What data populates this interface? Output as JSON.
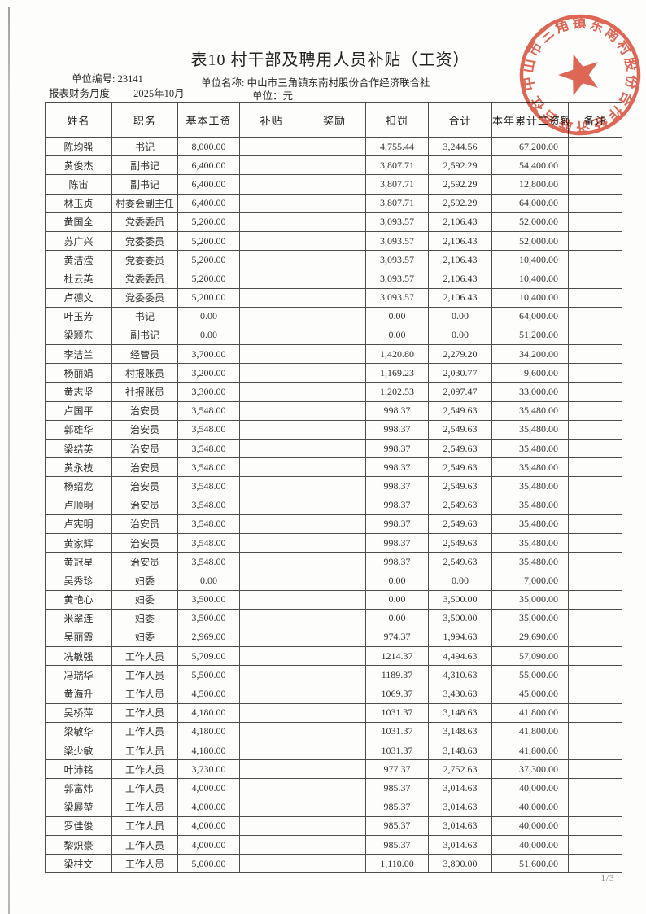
{
  "page": {
    "title": "表10 村干部及聘用人员补贴（工资）",
    "unit_code_label": "单位编号:",
    "unit_code_value": "23141",
    "unit_name_label": "单位名称:",
    "unit_name_value": "中山市三角镇东南村股份合作经济联合社",
    "period_label": "报表财务月度",
    "period_value": "2025年10月",
    "currency_note": "单位：元",
    "page_number": "1/3"
  },
  "stamp": {
    "text": "中山市三角镇东南村股份合作经济联合社",
    "color": "#d9452f"
  },
  "table": {
    "columns": [
      "姓名",
      "职务",
      "基本工资",
      "补贴",
      "奖励",
      "扣罚",
      "合计",
      "本年累计工资额",
      "备注"
    ],
    "rows": [
      [
        "陈均强",
        "书记",
        "8,000.00",
        "",
        "",
        "4,755.44",
        "3,244.56",
        "67,200.00",
        ""
      ],
      [
        "黄俊杰",
        "副书记",
        "6,400.00",
        "",
        "",
        "3,807.71",
        "2,592.29",
        "54,400.00",
        ""
      ],
      [
        "陈宙",
        "副书记",
        "6,400.00",
        "",
        "",
        "3,807.71",
        "2,592.29",
        "12,800.00",
        ""
      ],
      [
        "林玉贞",
        "村委会副主任",
        "6,400.00",
        "",
        "",
        "3,807.71",
        "2,592.29",
        "64,000.00",
        ""
      ],
      [
        "黄国全",
        "党委委员",
        "5,200.00",
        "",
        "",
        "3,093.57",
        "2,106.43",
        "52,000.00",
        ""
      ],
      [
        "苏广兴",
        "党委委员",
        "5,200.00",
        "",
        "",
        "3,093.57",
        "2,106.43",
        "52,000.00",
        ""
      ],
      [
        "黄洁滢",
        "党委委员",
        "5,200.00",
        "",
        "",
        "3,093.57",
        "2,106.43",
        "10,400.00",
        ""
      ],
      [
        "杜云英",
        "党委委员",
        "5,200.00",
        "",
        "",
        "3,093.57",
        "2,106.43",
        "10,400.00",
        ""
      ],
      [
        "卢德文",
        "党委委员",
        "5,200.00",
        "",
        "",
        "3,093.57",
        "2,106.43",
        "10,400.00",
        ""
      ],
      [
        "叶玉芳",
        "书记",
        "0.00",
        "",
        "",
        "0.00",
        "0.00",
        "64,000.00",
        ""
      ],
      [
        "梁颖东",
        "副书记",
        "0.00",
        "",
        "",
        "0.00",
        "0.00",
        "51,200.00",
        ""
      ],
      [
        "李洁兰",
        "经管员",
        "3,700.00",
        "",
        "",
        "1,420.80",
        "2,279.20",
        "34,200.00",
        ""
      ],
      [
        "杨丽娟",
        "村报账员",
        "3,200.00",
        "",
        "",
        "1,169.23",
        "2,030.77",
        "9,600.00",
        ""
      ],
      [
        "黄志坚",
        "社报账员",
        "3,300.00",
        "",
        "",
        "1,202.53",
        "2,097.47",
        "33,000.00",
        ""
      ],
      [
        "卢国平",
        "治安员",
        "3,548.00",
        "",
        "",
        "998.37",
        "2,549.63",
        "35,480.00",
        ""
      ],
      [
        "郭雄华",
        "治安员",
        "3,548.00",
        "",
        "",
        "998.37",
        "2,549.63",
        "35,480.00",
        ""
      ],
      [
        "梁结英",
        "治安员",
        "3,548.00",
        "",
        "",
        "998.37",
        "2,549.63",
        "35,480.00",
        ""
      ],
      [
        "黄永枝",
        "治安员",
        "3,548.00",
        "",
        "",
        "998.37",
        "2,549.63",
        "35,480.00",
        ""
      ],
      [
        "杨绍龙",
        "治安员",
        "3,548.00",
        "",
        "",
        "998.37",
        "2,549.63",
        "35,480.00",
        ""
      ],
      [
        "卢顺明",
        "治安员",
        "3,548.00",
        "",
        "",
        "998.37",
        "2,549.63",
        "35,480.00",
        ""
      ],
      [
        "卢宪明",
        "治安员",
        "3,548.00",
        "",
        "",
        "998.37",
        "2,549.63",
        "35,480.00",
        ""
      ],
      [
        "黄家辉",
        "治安员",
        "3,548.00",
        "",
        "",
        "998.37",
        "2,549.63",
        "35,480.00",
        ""
      ],
      [
        "黄冠星",
        "治安员",
        "3,548.00",
        "",
        "",
        "998.37",
        "2,549.63",
        "35,480.00",
        ""
      ],
      [
        "吴秀珍",
        "妇委",
        "0.00",
        "",
        "",
        "0.00",
        "0.00",
        "7,000.00",
        ""
      ],
      [
        "黄艳心",
        "妇委",
        "3,500.00",
        "",
        "",
        "0.00",
        "3,500.00",
        "35,000.00",
        ""
      ],
      [
        "米翠连",
        "妇委",
        "3,500.00",
        "",
        "",
        "0.00",
        "3,500.00",
        "35,000.00",
        ""
      ],
      [
        "吴丽霞",
        "妇委",
        "2,969.00",
        "",
        "",
        "974.37",
        "1,994.63",
        "29,690.00",
        ""
      ],
      [
        "冼敏强",
        "工作人员",
        "5,709.00",
        "",
        "",
        "1214.37",
        "4,494.63",
        "57,090.00",
        ""
      ],
      [
        "冯瑞华",
        "工作人员",
        "5,500.00",
        "",
        "",
        "1189.37",
        "4,310.63",
        "55,000.00",
        ""
      ],
      [
        "黄海升",
        "工作人员",
        "4,500.00",
        "",
        "",
        "1069.37",
        "3,430.63",
        "45,000.00",
        ""
      ],
      [
        "吴桥萍",
        "工作人员",
        "4,180.00",
        "",
        "",
        "1031.37",
        "3,148.63",
        "41,800.00",
        ""
      ],
      [
        "梁敏华",
        "工作人员",
        "4,180.00",
        "",
        "",
        "1031.37",
        "3,148.63",
        "41,800.00",
        ""
      ],
      [
        "梁少敏",
        "工作人员",
        "4,180.00",
        "",
        "",
        "1031.37",
        "3,148.63",
        "41,800.00",
        ""
      ],
      [
        "叶沛铭",
        "工作人员",
        "3,730.00",
        "",
        "",
        "977.37",
        "2,752.63",
        "37,300.00",
        ""
      ],
      [
        "郭富炜",
        "工作人员",
        "4,000.00",
        "",
        "",
        "985.37",
        "3,014.63",
        "40,000.00",
        ""
      ],
      [
        "梁展堃",
        "工作人员",
        "4,000.00",
        "",
        "",
        "985.37",
        "3,014.63",
        "40,000.00",
        ""
      ],
      [
        "罗佳俊",
        "工作人员",
        "4,000.00",
        "",
        "",
        "985.37",
        "3,014.63",
        "40,000.00",
        ""
      ],
      [
        "黎炽豪",
        "工作人员",
        "4,000.00",
        "",
        "",
        "985.37",
        "3,014.63",
        "40,000.00",
        ""
      ],
      [
        "梁柱文",
        "工作人员",
        "5,000.00",
        "",
        "",
        "1,110.00",
        "3,890.00",
        "51,600.00",
        ""
      ]
    ]
  }
}
